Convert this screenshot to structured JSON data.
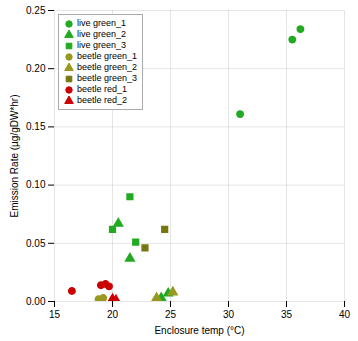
{
  "chart_data": {
    "type": "scatter",
    "xlabel": "Enclosure temp (°C)",
    "ylabel": "Emission Rate (µg/gDW*hr)",
    "xlim": [
      15,
      40
    ],
    "ylim": [
      0,
      0.25
    ],
    "xticks": [
      15,
      20,
      25,
      30,
      35,
      40
    ],
    "yticks": [
      {
        "value": 0,
        "label": "0.00"
      },
      0.05,
      {
        "value": 0.1,
        "label": "0.10"
      },
      0.15,
      {
        "value": 0.2,
        "label": "0.20"
      },
      0.25
    ],
    "grid": true,
    "legend": "upper left",
    "series": [
      {
        "name": "live green_1",
        "color": "#22aa22",
        "marker": "circle",
        "x": [
          31.0,
          35.5,
          36.2
        ],
        "values": [
          0.161,
          0.225,
          0.234
        ]
      },
      {
        "name": "live green_2",
        "color": "#22aa22",
        "marker": "triangle",
        "x": [
          20.5,
          21.5,
          24.2,
          24.8
        ],
        "values": [
          0.067,
          0.037,
          0.003,
          0.007
        ]
      },
      {
        "name": "live green_3",
        "color": "#22aa22",
        "marker": "square",
        "x": [
          20.0,
          21.5,
          22.0
        ],
        "values": [
          0.062,
          0.09,
          0.051
        ]
      },
      {
        "name": "beetle green_1",
        "color": "#999922",
        "marker": "circle",
        "x": [
          18.8,
          19.2
        ],
        "values": [
          0.002,
          0.003
        ]
      },
      {
        "name": "beetle green_2",
        "color": "#999922",
        "marker": "triangle",
        "x": [
          23.8,
          25.2
        ],
        "values": [
          0.003,
          0.008
        ]
      },
      {
        "name": "beetle green_3",
        "color": "#777711",
        "marker": "square",
        "x": [
          22.8,
          24.5
        ],
        "values": [
          0.046,
          0.062
        ]
      },
      {
        "name": "beetle red_1",
        "color": "#cc0000",
        "marker": "circle",
        "x": [
          16.5,
          19.0,
          19.4,
          19.7
        ],
        "values": [
          0.009,
          0.014,
          0.015,
          0.013
        ]
      },
      {
        "name": "beetle red_2",
        "color": "#cc0000",
        "marker": "triangle",
        "x": [
          20.0,
          20.3
        ],
        "values": [
          0.002,
          0.001
        ]
      }
    ]
  }
}
